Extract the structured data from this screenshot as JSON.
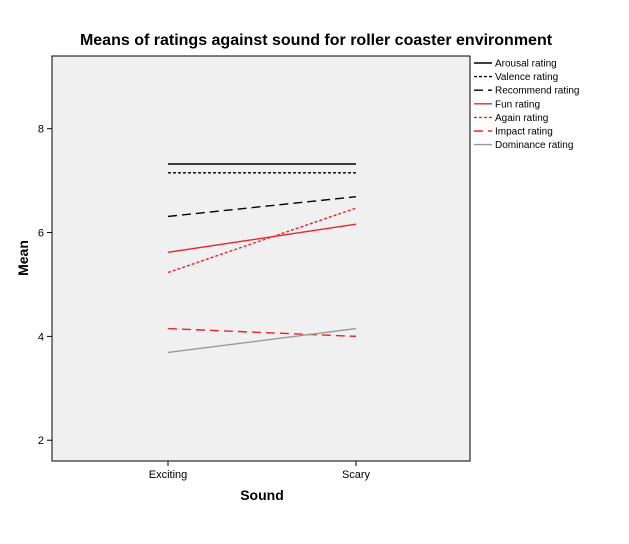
{
  "chart_data": {
    "type": "line",
    "title": "Means of ratings against sound for roller coaster environment",
    "xlabel": "Sound",
    "ylabel": "Mean",
    "categories": [
      "Exciting",
      "Scary"
    ],
    "ylim": [
      1.6,
      9.4
    ],
    "yticks": [
      2,
      4,
      6,
      8
    ],
    "grid": false,
    "legend_position": "right",
    "series": [
      {
        "name": "Arousal rating",
        "values": [
          7.32,
          7.32
        ],
        "color": "#000000",
        "dash": "solid"
      },
      {
        "name": "Valence rating",
        "values": [
          7.15,
          7.15
        ],
        "color": "#000000",
        "dash": "dotted"
      },
      {
        "name": "Recommend rating",
        "values": [
          6.31,
          6.69
        ],
        "color": "#000000",
        "dash": "dashed"
      },
      {
        "name": "Fun rating",
        "values": [
          5.62,
          6.16
        ],
        "color": "#e8262a",
        "dash": "solid"
      },
      {
        "name": "Again rating",
        "values": [
          5.23,
          6.47
        ],
        "color": "#e8262a",
        "dash": "dotted"
      },
      {
        "name": "Impact rating",
        "values": [
          4.15,
          4.0
        ],
        "color": "#e8262a",
        "dash": "dashed"
      },
      {
        "name": "Dominance rating",
        "values": [
          3.69,
          4.15
        ],
        "color": "#999999",
        "dash": "solid"
      }
    ],
    "colors": {
      "plot_background": "#f0f0f0",
      "frame": "#000000"
    }
  }
}
